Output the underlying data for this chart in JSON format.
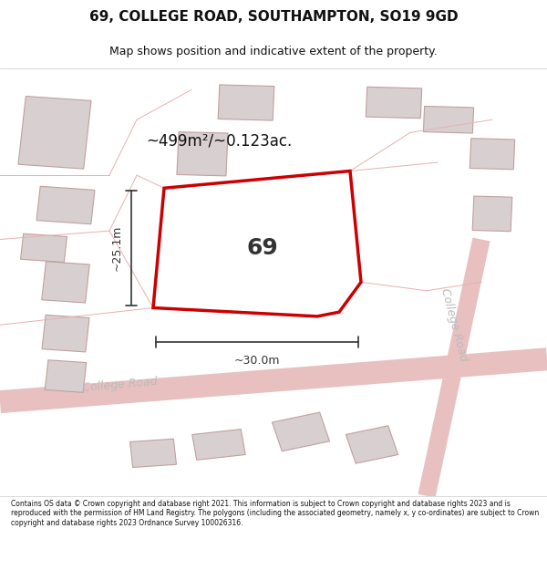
{
  "title": "69, COLLEGE ROAD, SOUTHAMPTON, SO19 9GD",
  "subtitle": "Map shows position and indicative extent of the property.",
  "area_label": "~499m²/~0.123ac.",
  "property_number": "69",
  "width_label": "~30.0m",
  "height_label": "~25.1m",
  "footer": "Contains OS data © Crown copyright and database right 2021. This information is subject to Crown copyright and database rights 2023 and is reproduced with the permission of HM Land Registry. The polygons (including the associated geometry, namely x, y co-ordinates) are subject to Crown copyright and database rights 2023 Ordnance Survey 100026316.",
  "bg_color": "#f5f0f0",
  "map_bg": "#f9f6f6",
  "road_color": "#e8b0b0",
  "building_fill": "#d8d0d0",
  "building_edge": "#c0a0a0",
  "property_fill": "#ffffff",
  "property_edge": "#cc0000",
  "road_label_color": "#aaaaaa",
  "dim_color": "#333333",
  "text_color": "#111111"
}
